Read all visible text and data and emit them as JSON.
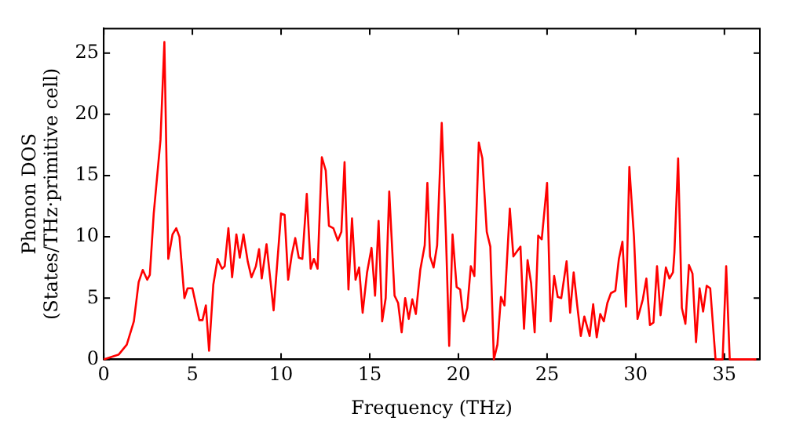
{
  "chart_data": {
    "type": "line",
    "xlabel": "Frequency (THz)",
    "ylabel": "Phonon DOS\n(States/THz·primitive cell)",
    "xlim": [
      0,
      37
    ],
    "ylim": [
      0,
      27
    ],
    "xticks": [
      0,
      5,
      10,
      15,
      20,
      25,
      30,
      35
    ],
    "yticks": [
      0,
      5,
      10,
      15,
      20,
      25
    ],
    "grid": false,
    "legend": false,
    "marker": "none",
    "line_style": "solid",
    "series": [
      {
        "color": "#ff0000",
        "x": [
          0,
          0.85,
          1.3,
          1.7,
          1.97,
          2.2,
          2.45,
          2.6,
          2.82,
          3.2,
          3.42,
          3.64,
          3.88,
          4.09,
          4.27,
          4.55,
          4.73,
          5.0,
          5.39,
          5.57,
          5.76,
          5.94,
          6.18,
          6.42,
          6.67,
          6.82,
          7.03,
          7.24,
          7.48,
          7.67,
          7.88,
          8.12,
          8.33,
          8.58,
          8.76,
          8.91,
          9.18,
          9.58,
          10.0,
          10.2,
          10.4,
          10.6,
          10.8,
          11.0,
          11.2,
          11.45,
          11.67,
          11.85,
          12.06,
          12.3,
          12.52,
          12.7,
          12.95,
          13.2,
          13.4,
          13.58,
          13.8,
          14.0,
          14.2,
          14.4,
          14.6,
          14.85,
          15.1,
          15.3,
          15.5,
          15.7,
          15.9,
          16.1,
          16.4,
          16.6,
          16.8,
          17.0,
          17.2,
          17.4,
          17.6,
          17.85,
          18.1,
          18.25,
          18.4,
          18.6,
          18.8,
          19.06,
          19.3,
          19.48,
          19.67,
          19.9,
          20.1,
          20.3,
          20.5,
          20.7,
          20.9,
          21.15,
          21.35,
          21.6,
          21.8,
          22.0,
          22.2,
          22.4,
          22.6,
          22.9,
          23.1,
          23.5,
          23.7,
          23.9,
          24.1,
          24.3,
          24.5,
          24.7,
          25.0,
          25.2,
          25.4,
          25.6,
          25.8,
          26.1,
          26.3,
          26.5,
          26.7,
          26.9,
          27.1,
          27.4,
          27.6,
          27.8,
          28.0,
          28.2,
          28.4,
          28.6,
          28.85,
          29.05,
          29.25,
          29.45,
          29.64,
          29.9,
          30.1,
          30.4,
          30.6,
          30.8,
          31.0,
          31.2,
          31.4,
          31.7,
          31.9,
          32.1,
          32.18,
          32.39,
          32.6,
          32.8,
          33.0,
          33.2,
          33.4,
          33.6,
          33.8,
          34.0,
          34.2,
          34.5,
          34.9,
          35.1,
          35.3,
          36.8
        ],
        "values": [
          0,
          0.4,
          1.2,
          3.1,
          6.3,
          7.3,
          6.5,
          6.9,
          11.9,
          17.9,
          25.9,
          8.2,
          10.2,
          10.7,
          10.0,
          5.0,
          5.8,
          5.8,
          3.2,
          3.2,
          4.4,
          0.7,
          6.1,
          8.2,
          7.4,
          7.6,
          10.7,
          6.7,
          10.2,
          8.3,
          10.2,
          8.0,
          6.7,
          7.6,
          9.0,
          6.6,
          9.4,
          4.0,
          11.9,
          11.8,
          6.5,
          8.5,
          9.9,
          8.3,
          8.2,
          13.5,
          7.4,
          8.2,
          7.4,
          16.5,
          15.4,
          10.9,
          10.7,
          9.7,
          10.4,
          16.1,
          5.7,
          11.5,
          6.5,
          7.5,
          3.8,
          7.1,
          9.1,
          5.2,
          11.3,
          3.1,
          5.0,
          13.7,
          5.2,
          4.6,
          2.2,
          5.0,
          3.3,
          4.9,
          3.7,
          7.3,
          9.3,
          14.4,
          8.4,
          7.5,
          9.3,
          19.3,
          10.0,
          1.1,
          10.2,
          5.9,
          5.7,
          3.1,
          4.2,
          7.6,
          6.8,
          17.7,
          16.4,
          10.4,
          9.2,
          0,
          1.2,
          5.1,
          4.4,
          12.3,
          8.4,
          9.2,
          2.5,
          8.1,
          6.2,
          2.2,
          10.1,
          9.8,
          14.4,
          3.1,
          6.8,
          5.1,
          5.0,
          8.0,
          3.8,
          7.1,
          4.4,
          1.9,
          3.5,
          1.9,
          4.5,
          1.8,
          3.7,
          3.1,
          4.6,
          5.4,
          5.6,
          8.2,
          9.6,
          4.3,
          15.7,
          10.0,
          3.3,
          4.9,
          6.6,
          2.8,
          3.0,
          7.6,
          3.6,
          7.5,
          6.6,
          7.1,
          8.7,
          16.4,
          4.2,
          2.9,
          7.7,
          7.0,
          1.4,
          5.8,
          3.9,
          6.0,
          5.8,
          0,
          0,
          7.6,
          0,
          0
        ]
      }
    ]
  }
}
